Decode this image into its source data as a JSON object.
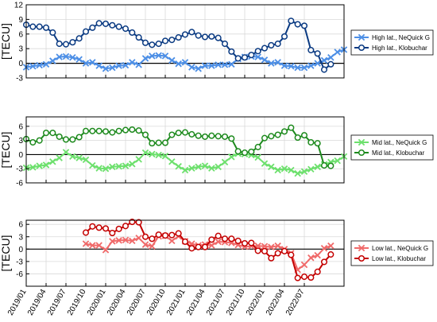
{
  "chart_data": [
    {
      "type": "line",
      "ylabel": "[TECU]",
      "ylim": [
        -3,
        12
      ],
      "yticks": [
        -3,
        0,
        3,
        6,
        9,
        12
      ],
      "grid": true,
      "legend_position": "right",
      "series": [
        {
          "name": "High lat., NeQuick G",
          "marker": "x",
          "color": "#4d8fe6",
          "values": [
            -0.8,
            -0.6,
            -0.4,
            -0.2,
            0.5,
            1.3,
            1.4,
            1.2,
            0.8,
            0.0,
            0.2,
            -0.5,
            -1.1,
            -0.9,
            -0.5,
            -0.4,
            0.2,
            -0.3,
            1.0,
            1.5,
            1.6,
            1.5,
            0.6,
            -0.1,
            0.2,
            -0.8,
            -1.1,
            -0.5,
            -0.5,
            -0.3,
            -0.3,
            -0.2,
            0.9,
            1.3,
            1.4,
            1.3,
            0.7,
            0.0,
            0.2,
            -0.5,
            -0.6,
            -0.9,
            -0.9,
            -0.5,
            0.0,
            0.6,
            1.2,
            2.3,
            2.8
          ]
        },
        {
          "name": "High lat., Klobuchar",
          "marker": "o",
          "color": "#0a3a82",
          "values": [
            7.9,
            7.5,
            7.5,
            7.3,
            6.3,
            4.0,
            3.9,
            4.3,
            5.1,
            6.5,
            7.3,
            8.2,
            8.1,
            7.8,
            7.5,
            7.1,
            6.3,
            5.3,
            4.2,
            3.8,
            4.0,
            4.6,
            4.8,
            5.3,
            5.9,
            6.4,
            5.7,
            5.4,
            5.5,
            5.2,
            4.0,
            2.4,
            1.0,
            1.2,
            1.7,
            2.5,
            3.1,
            3.7,
            4.0,
            5.5,
            8.7,
            8.0,
            7.7,
            2.7,
            2.0,
            -1.3,
            -0.2,
            null,
            null
          ]
        }
      ]
    },
    {
      "type": "line",
      "ylabel": "[TECU]",
      "ylim": [
        -6,
        8
      ],
      "yticks": [
        -6,
        -3,
        0,
        3,
        6
      ],
      "grid": true,
      "legend_position": "right",
      "series": [
        {
          "name": "Mid lat., NeQuick G",
          "marker": "x",
          "color": "#6de06d",
          "values": [
            -2.8,
            -2.7,
            -2.4,
            -2.2,
            -1.5,
            -0.7,
            0.5,
            -0.4,
            -0.7,
            -1.1,
            -2.3,
            -2.9,
            -3.0,
            -2.6,
            -2.5,
            -2.4,
            -2.0,
            -1.0,
            0.4,
            0.1,
            -0.1,
            -0.3,
            -1.5,
            -2.5,
            -3.3,
            -2.9,
            -2.6,
            -2.4,
            -2.9,
            -2.6,
            -1.6,
            -0.5,
            0.2,
            0.1,
            -0.1,
            -0.6,
            -1.9,
            -2.6,
            -3.3,
            -3.0,
            -3.3,
            -4.0,
            -3.6,
            -3.1,
            -2.6,
            -2.1,
            -1.6,
            -1.3,
            -0.4
          ]
        },
        {
          "name": "Mid lat., Klobuchar",
          "marker": "o",
          "color": "#1d8a1d",
          "values": [
            3.3,
            2.6,
            3.0,
            4.6,
            4.6,
            3.8,
            3.2,
            3.2,
            3.7,
            5.0,
            5.0,
            5.0,
            4.9,
            4.7,
            5.0,
            5.2,
            5.3,
            5.1,
            4.2,
            2.4,
            2.5,
            2.5,
            4.2,
            4.6,
            4.7,
            4.3,
            4.0,
            3.8,
            4.0,
            3.9,
            3.8,
            3.4,
            0.7,
            0.4,
            0.6,
            1.6,
            3.5,
            3.9,
            4.2,
            4.9,
            5.7,
            3.6,
            4.1,
            2.6,
            2.4,
            -2.3,
            -2.4,
            null,
            null
          ]
        }
      ]
    },
    {
      "type": "line",
      "ylabel": "[TECU]",
      "ylim": [
        -9,
        7
      ],
      "yticks": [
        -6,
        -3,
        0,
        3,
        6
      ],
      "grid": true,
      "legend_position": "right",
      "x": [
        "2019/01",
        "2019/02",
        "2019/03",
        "2019/04",
        "2019/05",
        "2019/06",
        "2019/07",
        "2019/08",
        "2019/09",
        "2019/10",
        "2019/11",
        "2019/12",
        "2020/01",
        "2020/02",
        "2020/03",
        "2020/04",
        "2020/05",
        "2020/06",
        "2020/07",
        "2020/08",
        "2020/09",
        "2020/10",
        "2020/11",
        "2020/12",
        "2021/01",
        "2021/02",
        "2021/03",
        "2021/04",
        "2021/05",
        "2021/06",
        "2021/07",
        "2021/08",
        "2021/09",
        "2021/10",
        "2021/11",
        "2021/12",
        "2022/01",
        "2022/02",
        "2022/03",
        "2022/04",
        "2022/05",
        "2022/06",
        "2022/07",
        "2022/08",
        "2022/09",
        "2022/10",
        "2022/11",
        "2022/12",
        "2023/01"
      ],
      "xticklabels": [
        "2019/01",
        "2019/04",
        "2019/07",
        "2019/10",
        "2020/01",
        "2020/04",
        "2020/07",
        "2020/10",
        "2021/01",
        "2021/04",
        "2021/07",
        "2021/10",
        "2022/01",
        "2022/04",
        "2022/07"
      ],
      "series": [
        {
          "name": "Low lat., NeQuick G",
          "marker": "x",
          "color": "#f06a6a",
          "values": [
            null,
            null,
            null,
            null,
            null,
            null,
            null,
            null,
            null,
            1.3,
            0.9,
            0.9,
            -0.2,
            1.9,
            2.1,
            2.2,
            2.0,
            2.7,
            1.1,
            0.7,
            3.1,
            3.2,
            2.0,
            3.1,
            1.9,
            1.3,
            0.9,
            1.1,
            0.9,
            1.8,
            1.7,
            1.5,
            1.0,
            0.6,
            0.7,
            0.8,
            0.7,
            0.5,
            0.8,
            0.0,
            -1.0,
            -5.0,
            -3.8,
            -2.1,
            -1.5,
            0.2,
            0.8,
            null,
            null
          ]
        },
        {
          "name": "Low lat., Klobuchar",
          "marker": "o",
          "color": "#c40000",
          "values": [
            null,
            null,
            null,
            null,
            null,
            null,
            null,
            null,
            null,
            4.0,
            5.5,
            5.2,
            5.0,
            3.9,
            4.9,
            5.6,
            6.6,
            6.5,
            3.0,
            2.5,
            3.5,
            3.3,
            3.4,
            3.8,
            1.8,
            0.2,
            0.5,
            0.5,
            2.3,
            3.2,
            2.5,
            2.5,
            2.0,
            1.4,
            1.5,
            -0.4,
            -0.5,
            -2.2,
            -1.0,
            -0.5,
            -1.4,
            -7.0,
            -6.7,
            -6.9,
            -5.5,
            -3.1,
            -1.3,
            null,
            null
          ]
        }
      ]
    }
  ]
}
